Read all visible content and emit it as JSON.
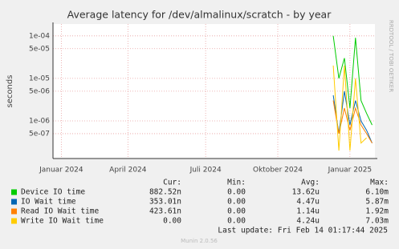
{
  "chart_data": {
    "type": "line",
    "title": "Average latency for /dev/almalinux/scratch - by year",
    "y_label": "seconds",
    "side_label": "RRDTOOL / TOBI OETIKER",
    "log_scale": true,
    "grid": true,
    "categories": [
      null,
      "Januar 2024",
      null,
      null,
      null,
      null,
      null,
      null,
      null,
      null,
      null,
      null,
      null,
      "April 2024",
      null,
      null,
      null,
      null,
      null,
      null,
      null,
      null,
      null,
      null,
      null,
      null,
      null,
      "Juli 2024",
      null,
      null,
      null,
      null,
      null,
      null,
      null,
      null,
      null,
      null,
      null,
      null,
      "Oktober 2024",
      null,
      null,
      null,
      null,
      null,
      null,
      null,
      null,
      null,
      null,
      null,
      null,
      "Januar 2025",
      null,
      null,
      null,
      null
    ],
    "ylim": [
      1.3e-07,
      0.00019
    ],
    "yticks": [
      {
        "value": 5e-07,
        "label": "5e-07"
      },
      {
        "value": 1e-06,
        "label": "1e-06"
      },
      {
        "value": 5e-06,
        "label": "5e-06"
      },
      {
        "value": 1e-05,
        "label": "1e-05"
      },
      {
        "value": 5e-05,
        "label": "5e-05"
      },
      {
        "value": 0.0001,
        "label": "1e-04"
      }
    ],
    "series": [
      {
        "name": "Device IO time",
        "color": "#00cc00",
        "values": [
          null,
          null,
          null,
          null,
          null,
          null,
          null,
          null,
          null,
          null,
          null,
          null,
          null,
          null,
          null,
          null,
          null,
          null,
          null,
          null,
          null,
          null,
          null,
          null,
          null,
          null,
          null,
          null,
          null,
          null,
          null,
          null,
          null,
          null,
          null,
          null,
          null,
          null,
          null,
          null,
          null,
          null,
          null,
          null,
          null,
          null,
          null,
          null,
          null,
          null,
          0.0001,
          1e-05,
          3e-05,
          2e-06,
          9e-05,
          3e-06,
          1.5e-06,
          8e-07
        ]
      },
      {
        "name": "IO Wait time",
        "color": "#0066b3",
        "values": [
          null,
          null,
          null,
          null,
          null,
          null,
          null,
          null,
          null,
          null,
          null,
          null,
          null,
          null,
          null,
          null,
          null,
          null,
          null,
          null,
          null,
          null,
          null,
          null,
          null,
          null,
          null,
          null,
          null,
          null,
          null,
          null,
          null,
          null,
          null,
          null,
          null,
          null,
          null,
          null,
          null,
          null,
          null,
          null,
          null,
          null,
          null,
          null,
          null,
          null,
          4e-06,
          5e-07,
          5e-06,
          8e-07,
          3e-06,
          1e-06,
          6e-07,
          3e-07
        ]
      },
      {
        "name": "Read IO Wait time",
        "color": "#ff8000",
        "values": [
          null,
          null,
          null,
          null,
          null,
          null,
          null,
          null,
          null,
          null,
          null,
          null,
          null,
          null,
          null,
          null,
          null,
          null,
          null,
          null,
          null,
          null,
          null,
          null,
          null,
          null,
          null,
          null,
          null,
          null,
          null,
          null,
          null,
          null,
          null,
          null,
          null,
          null,
          null,
          null,
          null,
          null,
          null,
          null,
          null,
          null,
          null,
          null,
          null,
          null,
          3e-06,
          5e-07,
          2e-06,
          6e-07,
          2e-06,
          8e-07,
          5e-07,
          3e-07
        ]
      },
      {
        "name": "Write IO Wait time",
        "color": "#ffcc00",
        "values": [
          null,
          null,
          null,
          null,
          null,
          null,
          null,
          null,
          null,
          null,
          null,
          null,
          null,
          null,
          null,
          null,
          null,
          null,
          null,
          null,
          null,
          null,
          null,
          null,
          null,
          null,
          null,
          null,
          null,
          null,
          null,
          null,
          null,
          null,
          null,
          null,
          null,
          null,
          null,
          null,
          null,
          null,
          null,
          null,
          null,
          null,
          null,
          null,
          null,
          null,
          2e-05,
          2e-07,
          2e-05,
          2e-07,
          1e-05,
          3e-07,
          4e-07,
          null
        ]
      }
    ],
    "legend_table": {
      "header": [
        "Cur:",
        "Min:",
        "Avg:",
        "Max:"
      ],
      "rows": [
        [
          "882.52n",
          "0.00",
          "13.62u",
          "6.10m"
        ],
        [
          "353.01n",
          "0.00",
          "4.47u",
          "5.87m"
        ],
        [
          "423.61n",
          "0.00",
          "1.14u",
          "1.92m"
        ],
        [
          "0.00",
          "0.00",
          "4.24u",
          "7.03m"
        ]
      ]
    },
    "last_update": "Last update: Fri Feb 14 01:17:44 2025",
    "footer": "Munin 2.0.56"
  }
}
